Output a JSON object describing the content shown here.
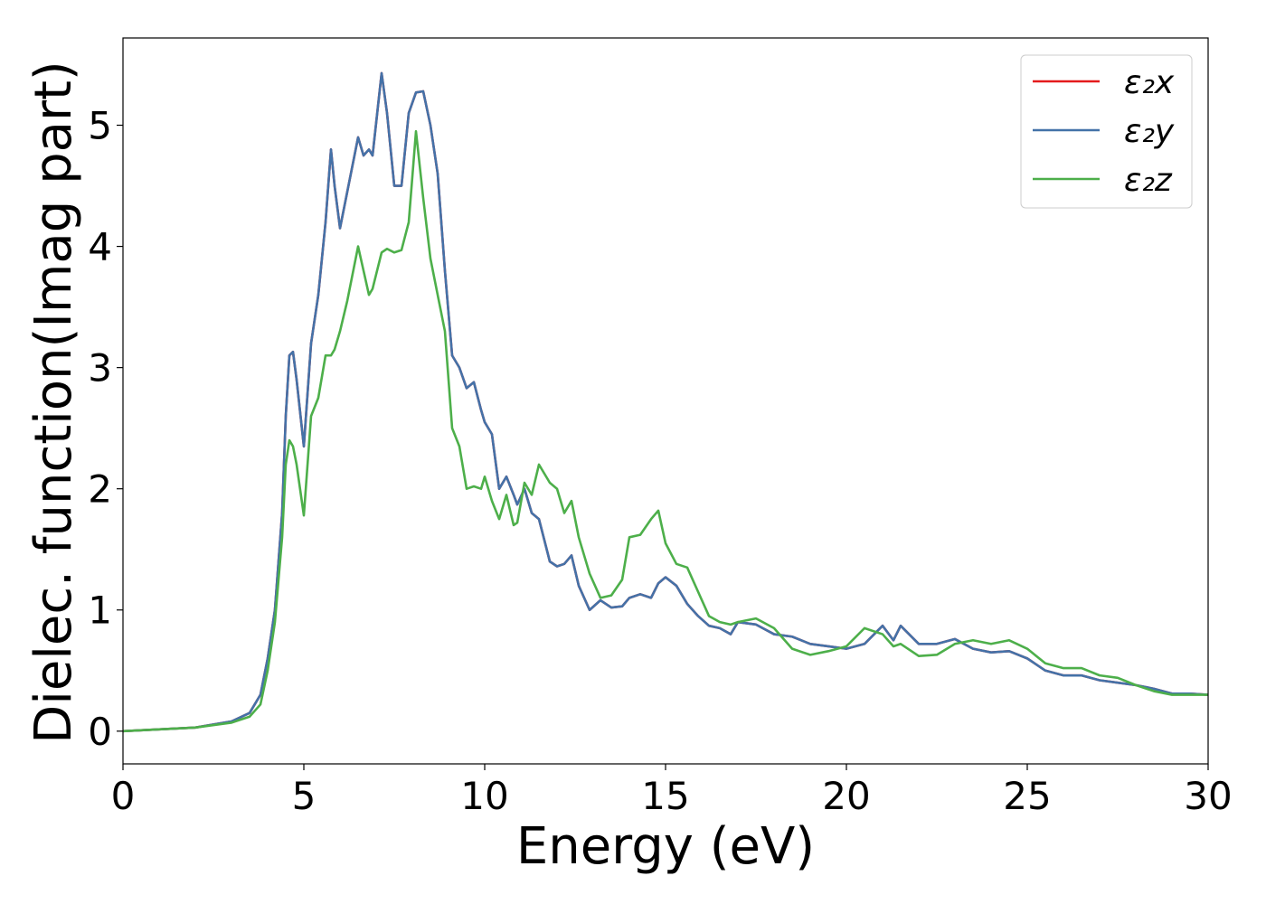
{
  "chart_data": {
    "type": "line",
    "xlabel": "Energy (eV)",
    "ylabel": "Dielec. function(Imag part)",
    "x": [
      0,
      2,
      3,
      3.5,
      3.8,
      4.0,
      4.2,
      4.4,
      4.5,
      4.6,
      4.7,
      4.8,
      5.0,
      5.2,
      5.4,
      5.6,
      5.75,
      5.85,
      6.0,
      6.2,
      6.5,
      6.65,
      6.8,
      6.9,
      7.15,
      7.3,
      7.5,
      7.7,
      7.9,
      8.1,
      8.3,
      8.5,
      8.7,
      8.9,
      9.1,
      9.3,
      9.5,
      9.7,
      9.9,
      10.0,
      10.2,
      10.4,
      10.6,
      10.8,
      10.9,
      11.1,
      11.3,
      11.5,
      11.8,
      12.0,
      12.2,
      12.4,
      12.6,
      12.9,
      13.2,
      13.5,
      13.8,
      14.0,
      14.3,
      14.6,
      14.8,
      15.0,
      15.3,
      15.6,
      15.9,
      16.2,
      16.5,
      16.8,
      17.0,
      17.5,
      18.0,
      18.5,
      19.0,
      19.5,
      20.0,
      20.5,
      21.0,
      21.3,
      21.5,
      22.0,
      22.5,
      23.0,
      23.5,
      24.0,
      24.5,
      25.0,
      25.5,
      26.0,
      26.5,
      27.0,
      27.5,
      28.0,
      28.5,
      29.0,
      29.5,
      30.0
    ],
    "series": [
      {
        "name": "ε₂x",
        "color": "#e41a1c",
        "values": [
          0,
          0.03,
          0.08,
          0.15,
          0.3,
          0.6,
          1.0,
          1.8,
          2.6,
          3.1,
          3.13,
          2.9,
          2.35,
          3.2,
          3.6,
          4.2,
          4.8,
          4.5,
          4.15,
          4.45,
          4.9,
          4.75,
          4.8,
          4.75,
          5.43,
          5.1,
          4.5,
          4.5,
          5.1,
          5.27,
          5.28,
          5.0,
          4.6,
          3.8,
          3.1,
          3.0,
          2.83,
          2.88,
          2.65,
          2.55,
          2.45,
          2.0,
          2.1,
          1.95,
          1.87,
          2.0,
          1.8,
          1.75,
          1.4,
          1.36,
          1.38,
          1.45,
          1.2,
          1.0,
          1.08,
          1.02,
          1.03,
          1.1,
          1.13,
          1.1,
          1.22,
          1.27,
          1.2,
          1.05,
          0.95,
          0.87,
          0.85,
          0.8,
          0.9,
          0.88,
          0.8,
          0.78,
          0.72,
          0.7,
          0.68,
          0.72,
          0.87,
          0.75,
          0.87,
          0.72,
          0.72,
          0.76,
          0.68,
          0.65,
          0.66,
          0.6,
          0.5,
          0.46,
          0.46,
          0.42,
          0.4,
          0.38,
          0.35,
          0.31,
          0.31,
          0.3
        ]
      },
      {
        "name": "ε₂y",
        "color": "#4472a8",
        "values": [
          0,
          0.03,
          0.08,
          0.15,
          0.3,
          0.6,
          1.0,
          1.8,
          2.6,
          3.1,
          3.13,
          2.9,
          2.35,
          3.2,
          3.6,
          4.2,
          4.8,
          4.5,
          4.15,
          4.45,
          4.9,
          4.75,
          4.8,
          4.75,
          5.43,
          5.1,
          4.5,
          4.5,
          5.1,
          5.27,
          5.28,
          5.0,
          4.6,
          3.8,
          3.1,
          3.0,
          2.83,
          2.88,
          2.65,
          2.55,
          2.45,
          2.0,
          2.1,
          1.95,
          1.87,
          2.0,
          1.8,
          1.75,
          1.4,
          1.36,
          1.38,
          1.45,
          1.2,
          1.0,
          1.08,
          1.02,
          1.03,
          1.1,
          1.13,
          1.1,
          1.22,
          1.27,
          1.2,
          1.05,
          0.95,
          0.87,
          0.85,
          0.8,
          0.9,
          0.88,
          0.8,
          0.78,
          0.72,
          0.7,
          0.68,
          0.72,
          0.87,
          0.75,
          0.87,
          0.72,
          0.72,
          0.76,
          0.68,
          0.65,
          0.66,
          0.6,
          0.5,
          0.46,
          0.46,
          0.42,
          0.4,
          0.38,
          0.35,
          0.31,
          0.31,
          0.3
        ]
      },
      {
        "name": "ε₂z",
        "color": "#4daf4a",
        "values": [
          0,
          0.03,
          0.07,
          0.12,
          0.22,
          0.5,
          0.9,
          1.6,
          2.2,
          2.4,
          2.35,
          2.2,
          1.78,
          2.6,
          2.75,
          3.1,
          3.1,
          3.15,
          3.3,
          3.55,
          4.0,
          3.8,
          3.6,
          3.65,
          3.95,
          3.98,
          3.95,
          3.97,
          4.2,
          4.95,
          4.4,
          3.9,
          3.6,
          3.3,
          2.5,
          2.35,
          2.0,
          2.02,
          2.0,
          2.1,
          1.9,
          1.75,
          1.95,
          1.7,
          1.72,
          2.05,
          1.95,
          2.2,
          2.05,
          2.0,
          1.8,
          1.9,
          1.6,
          1.3,
          1.1,
          1.12,
          1.25,
          1.6,
          1.62,
          1.75,
          1.82,
          1.55,
          1.38,
          1.35,
          1.15,
          0.95,
          0.9,
          0.88,
          0.9,
          0.93,
          0.85,
          0.68,
          0.63,
          0.66,
          0.7,
          0.85,
          0.8,
          0.7,
          0.72,
          0.62,
          0.63,
          0.72,
          0.75,
          0.72,
          0.75,
          0.68,
          0.56,
          0.52,
          0.52,
          0.46,
          0.44,
          0.38,
          0.33,
          0.3,
          0.3,
          0.3
        ]
      }
    ],
    "xlim": [
      0,
      30
    ],
    "xticks": [
      0,
      5,
      10,
      15,
      20,
      25,
      30
    ],
    "ylim": [
      -0.27,
      5.72
    ],
    "yticks": [
      0,
      1,
      2,
      3,
      4,
      5
    ],
    "grid": false,
    "legend": "upper right"
  }
}
